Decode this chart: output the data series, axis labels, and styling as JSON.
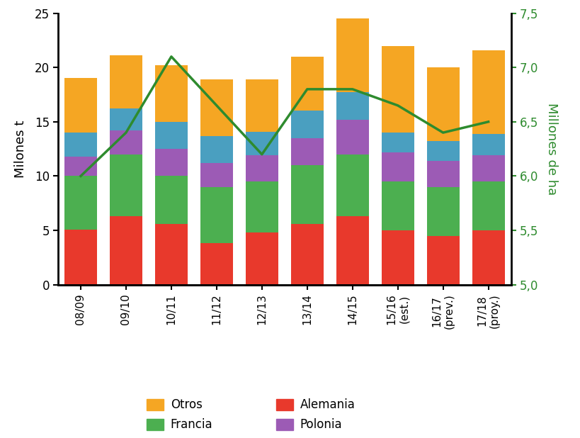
{
  "categories": [
    "08/09",
    "09/10",
    "10/11",
    "11/12",
    "12/13",
    "13/14",
    "14/15",
    "15/16\n(est.)",
    "16/17\n(prev.)",
    "17/18\n(proy.)"
  ],
  "alemania": [
    5.1,
    6.3,
    5.6,
    3.8,
    4.8,
    5.6,
    6.3,
    5.0,
    4.5,
    5.0
  ],
  "francia": [
    4.9,
    5.7,
    4.4,
    5.2,
    4.7,
    5.4,
    5.7,
    4.5,
    4.5,
    4.5
  ],
  "polonia": [
    1.8,
    2.2,
    2.5,
    2.2,
    2.4,
    2.5,
    3.2,
    2.7,
    2.4,
    2.4
  ],
  "reino_unido": [
    2.2,
    2.0,
    2.5,
    2.5,
    2.2,
    2.5,
    2.5,
    1.8,
    1.8,
    2.0
  ],
  "otros": [
    5.0,
    4.9,
    5.2,
    5.2,
    4.8,
    5.0,
    6.8,
    8.0,
    6.8,
    7.7
  ],
  "superficie": [
    6.0,
    6.4,
    7.1,
    6.65,
    6.2,
    6.8,
    6.8,
    6.65,
    6.4,
    6.5
  ],
  "bar_colors": {
    "alemania": "#e8392c",
    "francia": "#4caf50",
    "polonia": "#9c5bb5",
    "reino_unido": "#4a9fc0",
    "otros": "#f5a623"
  },
  "line_color": "#2e8b2e",
  "ylabel_left": "Milones t",
  "ylabel_right": "Millones de ha",
  "ylim_left": [
    0,
    25
  ],
  "ylim_right": [
    5.0,
    7.5
  ],
  "yticks_left": [
    0,
    5,
    10,
    15,
    20,
    25
  ],
  "yticks_right": [
    5.0,
    5.5,
    6.0,
    6.5,
    7.0,
    7.5
  ],
  "background_color": "#ffffff",
  "spine_linewidth": 1.5
}
